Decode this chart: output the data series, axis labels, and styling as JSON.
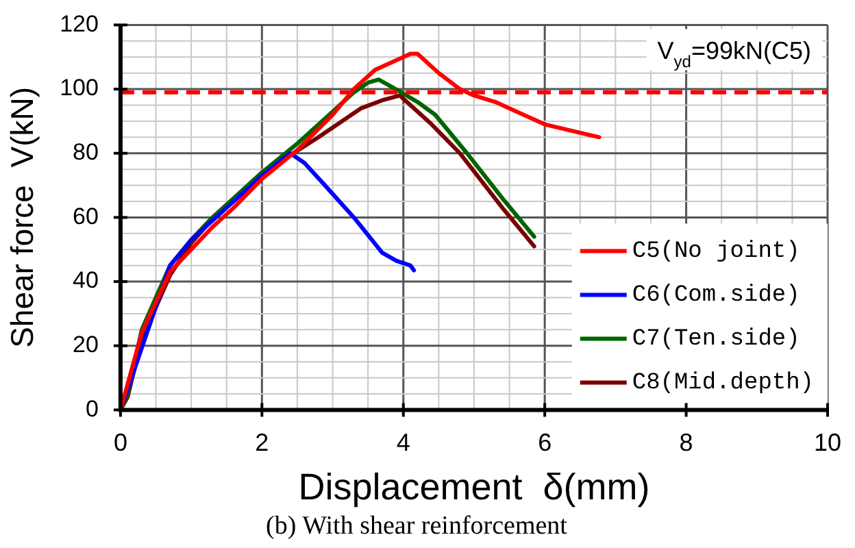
{
  "chart_data": {
    "type": "line",
    "title": "(b) With shear reinforcement",
    "xlabel": "Displacement  δ(mm)",
    "ylabel": "Shear force  V(kN)",
    "xlim": [
      0,
      10
    ],
    "xticks": [
      0,
      2,
      4,
      6,
      8,
      10
    ],
    "ylim": [
      0,
      120
    ],
    "yticks": [
      0,
      20,
      40,
      60,
      80,
      100,
      120
    ],
    "grid": true,
    "legend": "bottom right",
    "marker": "none",
    "line_style": "solid",
    "ref_lines": [
      {
        "axis": "y",
        "value": 99,
        "label": "V$_{yd}$=99kN(C5)",
        "color": "#ff0000",
        "line_style": "dashed"
      }
    ],
    "series": [
      {
        "name": "C5(No joint)",
        "color": "#ff0000",
        "x": [
          0,
          0.1,
          0.3,
          0.7,
          1.0,
          1.3,
          1.6,
          2.0,
          2.5,
          3.0,
          3.3,
          3.6,
          3.9,
          4.1,
          4.2,
          4.5,
          4.8,
          5.0,
          5.3,
          6.0,
          6.77
        ],
        "values": [
          0,
          8,
          24,
          43,
          50,
          57,
          63,
          72,
          81,
          92,
          100,
          106,
          109,
          111,
          111,
          105,
          100,
          98,
          96,
          89,
          85
        ]
      },
      {
        "name": "C6(Com.side)",
        "color": "#0000ff",
        "x": [
          0,
          0.7,
          1.0,
          1.5,
          2.0,
          2.4,
          2.6,
          2.85,
          3.3,
          3.7,
          3.9,
          4.1,
          4.15
        ],
        "values": [
          0,
          45,
          53,
          63,
          73,
          80,
          77,
          71,
          60,
          49,
          46.5,
          45,
          43.5
        ]
      },
      {
        "name": "C7(Ten.side)",
        "color": "#006400",
        "x": [
          0,
          0.1,
          0.3,
          0.5,
          0.7,
          1.0,
          1.3,
          2.0,
          2.5,
          3.0,
          3.3,
          3.5,
          3.65,
          3.85,
          4.2,
          4.45,
          4.9,
          5.4,
          5.85
        ],
        "values": [
          0,
          5,
          25,
          35,
          45,
          53,
          60,
          74,
          83,
          93,
          99,
          102,
          103,
          100.5,
          96,
          92,
          80,
          66,
          54
        ]
      },
      {
        "name": "C8(Mid.depth)",
        "color": "#7b0000",
        "x": [
          0,
          0.1,
          0.3,
          0.7,
          1.0,
          1.3,
          2.0,
          2.3,
          2.8,
          3.4,
          3.7,
          3.95,
          4.4,
          4.8,
          5.4,
          5.85
        ],
        "values": [
          0,
          4,
          22,
          42,
          52,
          59.5,
          74,
          78,
          85,
          94,
          96.5,
          98,
          89,
          80,
          63,
          51
        ]
      }
    ]
  }
}
